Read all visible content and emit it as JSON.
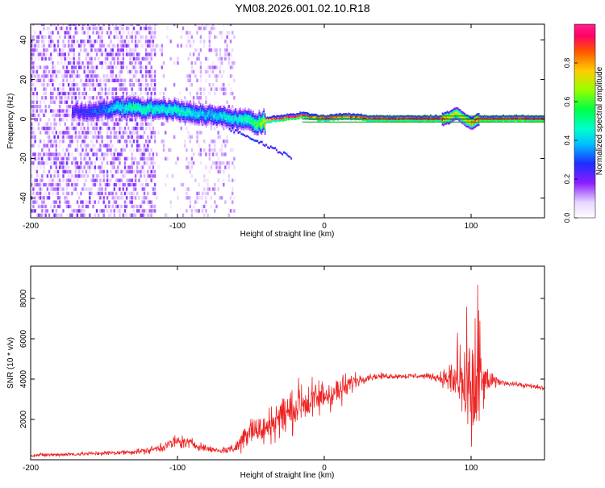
{
  "title": "YM08.2026.001.02.10.R18",
  "colors": {
    "trace": "#ee2222",
    "line_green": "#009900",
    "line_dark": "#222222",
    "axis": "#000000"
  },
  "chart_data": [
    {
      "type": "heatmap",
      "name": "spectrogram",
      "xlabel": "Height of straight line (km)",
      "ylabel": "Frequency (Hz)",
      "xlim": [
        -200,
        150
      ],
      "ylim": [
        -50,
        48
      ],
      "xticks": [
        -200,
        -100,
        0,
        100
      ],
      "yticks": [
        -40,
        -20,
        0,
        20,
        40
      ],
      "colorbar": {
        "label": "Normalized spectral amplitude",
        "range": [
          0,
          1
        ],
        "ticks": [
          0.0,
          0.2,
          0.4,
          0.6,
          0.8
        ]
      },
      "ridge": {
        "x": [
          -170,
          -160,
          -150,
          -140,
          -130,
          -120,
          -110,
          -100,
          -90,
          -80,
          -70,
          -60,
          -50,
          -45,
          -40,
          -35,
          -30,
          -25,
          -20,
          -15,
          -10,
          0,
          10,
          20,
          30,
          40,
          50,
          60,
          70,
          80,
          85,
          90,
          95,
          100,
          105,
          110,
          150
        ],
        "y": [
          4,
          4,
          5,
          6,
          6,
          5,
          5,
          4,
          3,
          2,
          1,
          0,
          -1,
          -3,
          -1,
          0,
          0,
          1,
          1,
          2,
          1,
          0,
          1,
          1,
          0,
          0,
          0,
          0,
          0,
          0,
          1,
          3,
          0,
          -2,
          0,
          0,
          0
        ],
        "amplitude": [
          0.25,
          0.3,
          0.35,
          0.45,
          0.5,
          0.5,
          0.45,
          0.5,
          0.45,
          0.4,
          0.45,
          0.45,
          0.55,
          0.6,
          0.8,
          0.9,
          0.95,
          0.95,
          0.98,
          0.98,
          0.9,
          0.88,
          0.9,
          0.92,
          0.94,
          0.95,
          0.95,
          0.96,
          0.97,
          0.9,
          0.8,
          0.7,
          0.75,
          0.85,
          0.95,
          0.98,
          0.98
        ]
      },
      "reference_lines": [
        {
          "name": "upper-line",
          "y": 1.5,
          "color": "#009900"
        },
        {
          "name": "lower-line",
          "y": -1.5,
          "color": "#009900"
        },
        {
          "name": "center-line",
          "y": 0,
          "color": "#222222"
        }
      ]
    },
    {
      "type": "line",
      "name": "snr",
      "xlabel": "Height of straight line (km)",
      "ylabel": "SNR (10 * v/v)",
      "xlim": [
        -200,
        150
      ],
      "ylim": [
        0,
        9600
      ],
      "xticks": [
        -200,
        -100,
        0,
        100
      ],
      "yticks": [
        2000,
        4000,
        6000,
        8000
      ],
      "series": [
        {
          "name": "SNR",
          "color": "#ee2222",
          "x": [
            -200,
            -180,
            -160,
            -140,
            -120,
            -110,
            -100,
            -90,
            -80,
            -70,
            -60,
            -55,
            -50,
            -45,
            -40,
            -35,
            -30,
            -25,
            -20,
            -15,
            -10,
            -5,
            0,
            5,
            10,
            15,
            20,
            25,
            30,
            40,
            50,
            60,
            70,
            75,
            80,
            85,
            90,
            95,
            100,
            105,
            110,
            120,
            130,
            140,
            150
          ],
          "mean": [
            220,
            260,
            300,
            350,
            450,
            650,
            900,
            800,
            550,
            450,
            600,
            1100,
            1700,
            1400,
            1500,
            1900,
            2200,
            2300,
            2600,
            2900,
            2800,
            3000,
            3200,
            3300,
            3400,
            3600,
            3900,
            4000,
            4100,
            4150,
            4150,
            4150,
            4150,
            4100,
            4050,
            4000,
            3800,
            3500,
            3300,
            3400,
            3900,
            3850,
            3750,
            3650,
            3550
          ],
          "spread": [
            100,
            110,
            120,
            130,
            180,
            300,
            400,
            300,
            200,
            180,
            350,
            800,
            1000,
            900,
            900,
            1100,
            1200,
            1300,
            1400,
            1300,
            1200,
            1100,
            1100,
            1000,
            900,
            700,
            500,
            300,
            200,
            160,
            150,
            150,
            150,
            200,
            400,
            800,
            1800,
            3500,
            3800,
            3600,
            800,
            150,
            140,
            140,
            140
          ]
        }
      ]
    }
  ]
}
